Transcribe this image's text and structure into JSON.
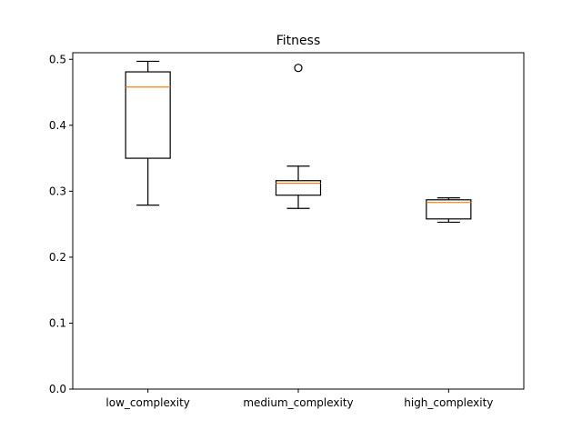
{
  "chart_data": {
    "type": "box",
    "title": "Fitness",
    "xlabel": "",
    "ylabel": "",
    "ylim": [
      0,
      0.51
    ],
    "yticks": [
      0.0,
      0.1,
      0.2,
      0.3,
      0.4,
      0.5
    ],
    "ytick_labels": [
      "0.0",
      "0.1",
      "0.2",
      "0.3",
      "0.4",
      "0.5"
    ],
    "grid": false,
    "categories": [
      "low_complexity",
      "medium_complexity",
      "high_complexity"
    ],
    "boxes": [
      {
        "category": "low_complexity",
        "whisker_low": 0.279,
        "q1": 0.35,
        "median": 0.458,
        "q3": 0.481,
        "whisker_high": 0.497,
        "outliers": []
      },
      {
        "category": "medium_complexity",
        "whisker_low": 0.274,
        "q1": 0.294,
        "median": 0.312,
        "q3": 0.316,
        "whisker_high": 0.338,
        "outliers": [
          0.487
        ]
      },
      {
        "category": "high_complexity",
        "whisker_low": 0.253,
        "q1": 0.258,
        "median": 0.283,
        "q3": 0.287,
        "whisker_high": 0.29,
        "outliers": []
      }
    ],
    "colors": {
      "box_edge": "#000000",
      "median": "#ff7f0e",
      "axes": "#000000",
      "background": "#ffffff"
    }
  }
}
